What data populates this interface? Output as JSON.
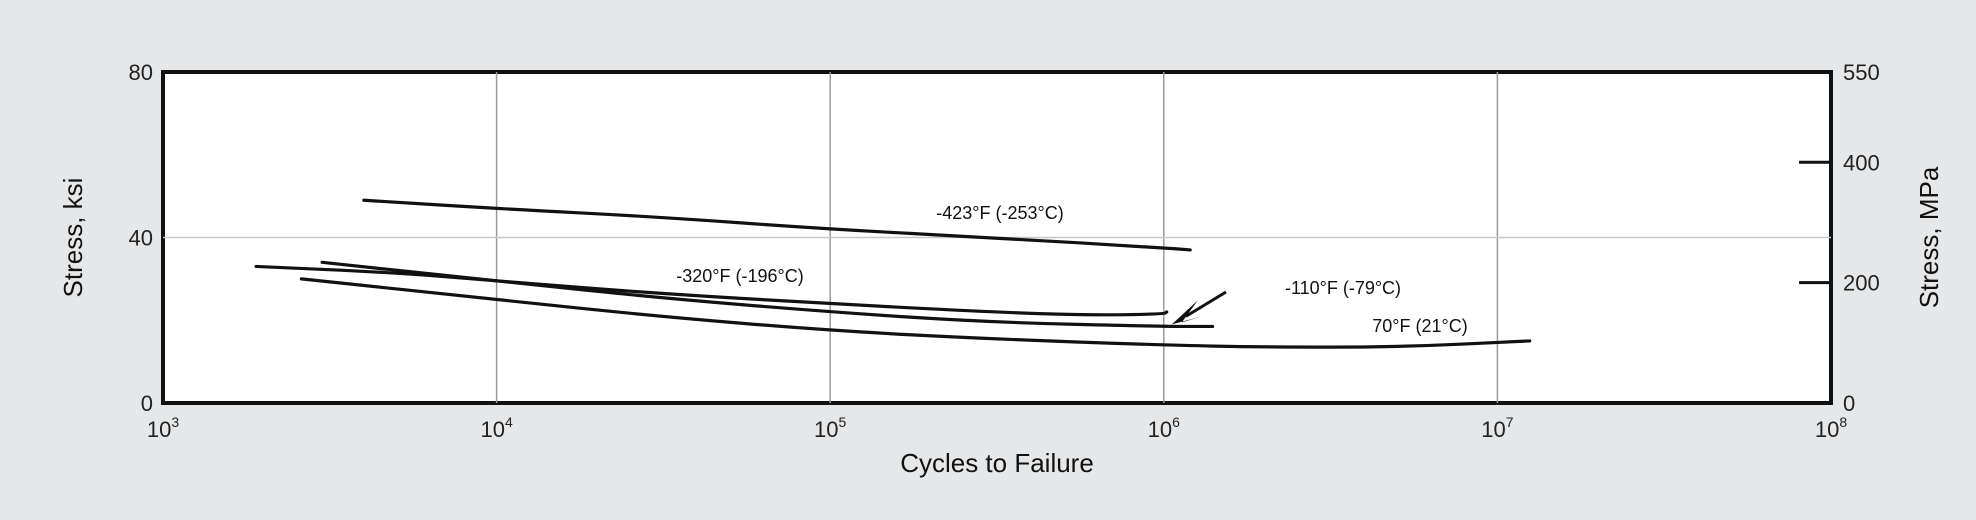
{
  "chart_data": {
    "type": "line",
    "title": "",
    "xlabel": "Cycles to Failure",
    "ylabel": "Stress, ksi",
    "ylabel_right": "Stress, MPa",
    "x_scale": "log",
    "xlim": [
      1000,
      100000000
    ],
    "ylim": [
      0,
      80
    ],
    "x_ticks": [
      {
        "value": 1000,
        "base": "10",
        "exp": "3"
      },
      {
        "value": 10000,
        "base": "10",
        "exp": "4"
      },
      {
        "value": 100000,
        "base": "10",
        "exp": "5"
      },
      {
        "value": 1000000,
        "base": "10",
        "exp": "6"
      },
      {
        "value": 10000000,
        "base": "10",
        "exp": "7"
      },
      {
        "value": 100000000,
        "base": "10",
        "exp": "8"
      }
    ],
    "y_ticks": [
      {
        "value": 0,
        "label": "0"
      },
      {
        "value": 40,
        "label": "40"
      },
      {
        "value": 80,
        "label": "80"
      }
    ],
    "y_right_ticks": [
      {
        "value": 0,
        "label": "0"
      },
      {
        "value": 200,
        "label": "200"
      },
      {
        "value": 400,
        "label": "400"
      },
      {
        "value": 550,
        "label": "550"
      }
    ],
    "y_right_lim": [
      0,
      550
    ],
    "grid": true,
    "series": [
      {
        "name": "-423°F (-253°C)",
        "x": [
          4000,
          10000,
          30000,
          100000,
          300000,
          1000000,
          1200000
        ],
        "y": [
          49,
          47,
          45,
          42,
          40,
          37.5,
          37
        ]
      },
      {
        "name": "-320°F (-196°C)",
        "x": [
          1900,
          5000,
          10000,
          30000,
          100000,
          300000,
          600000,
          1000000,
          1020000
        ],
        "y": [
          33,
          31.5,
          29.5,
          26.5,
          24,
          22,
          21.2,
          21.5,
          22
        ]
      },
      {
        "name": "-110°F (-79°C)",
        "x": [
          3000,
          10000,
          30000,
          100000,
          300000,
          1000000,
          1400000
        ],
        "y": [
          34,
          29.5,
          25.5,
          22,
          19.5,
          18.5,
          18.5
        ]
      },
      {
        "name": "70°F (21°C)",
        "x": [
          2600,
          10000,
          30000,
          100000,
          300000,
          1000000,
          2000000,
          5000000,
          12500000
        ],
        "y": [
          30,
          25,
          21,
          17.5,
          15.5,
          14,
          13.5,
          13.5,
          15
        ]
      }
    ],
    "annotations": [
      {
        "series": "-423°F (-253°C)",
        "text": "-423°F (-253°C)"
      },
      {
        "series": "-320°F (-196°C)",
        "text": "-320°F (-196°C)"
      },
      {
        "series": "-110°F (-79°C)",
        "text": "-110°F (-79°C)",
        "arrow_to": {
          "x": 1000000,
          "y": 19
        }
      },
      {
        "series": "70°F (21°C)",
        "text": "70°F (21°C)"
      }
    ]
  }
}
